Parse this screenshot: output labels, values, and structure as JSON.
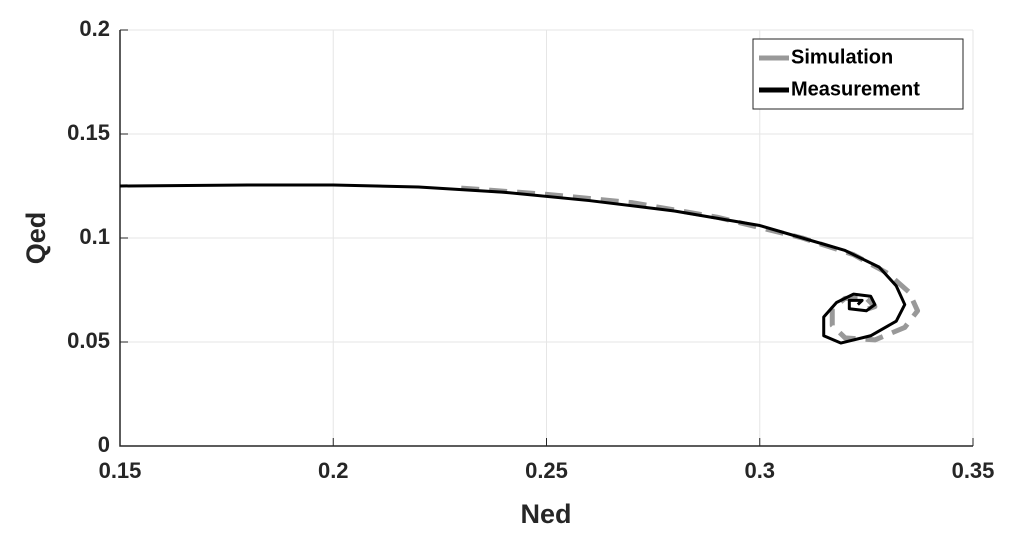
{
  "chart_data": {
    "type": "line",
    "xlabel": "Ned",
    "ylabel": "Qed",
    "xlim": [
      0.15,
      0.35
    ],
    "xticks": [
      0.15,
      0.2,
      0.25,
      0.3,
      0.35
    ],
    "ylim": [
      0,
      0.2
    ],
    "yticks": [
      0,
      0.05,
      0.1,
      0.15,
      0.2
    ],
    "grid": true,
    "legend": "upper right",
    "series": [
      {
        "name": "Simulation",
        "color": "#999999",
        "dashed": true,
        "x": [
          0.23,
          0.25,
          0.27,
          0.29,
          0.31,
          0.322,
          0.33,
          0.335,
          0.337,
          0.334,
          0.327,
          0.32,
          0.317,
          0.317,
          0.32,
          0.325,
          0.327,
          0.324
        ],
        "values": [
          0.124,
          0.121,
          0.117,
          0.11,
          0.1,
          0.092,
          0.083,
          0.074,
          0.065,
          0.057,
          0.051,
          0.052,
          0.058,
          0.066,
          0.071,
          0.071,
          0.067,
          0.065
        ]
      },
      {
        "name": "Measurement",
        "color": "#000000",
        "dashed": false,
        "x": [
          0.15,
          0.18,
          0.2,
          0.22,
          0.24,
          0.26,
          0.28,
          0.3,
          0.31,
          0.32,
          0.328,
          0.332,
          0.334,
          0.332,
          0.326,
          0.319,
          0.315,
          0.315,
          0.318,
          0.322,
          0.326,
          0.327,
          0.325,
          0.321,
          0.321,
          0.324,
          0.323
        ],
        "values": [
          0.125,
          0.1255,
          0.1255,
          0.1245,
          0.122,
          0.118,
          0.113,
          0.106,
          0.1,
          0.094,
          0.086,
          0.077,
          0.068,
          0.06,
          0.053,
          0.0495,
          0.053,
          0.062,
          0.069,
          0.073,
          0.072,
          0.068,
          0.065,
          0.066,
          0.07,
          0.07,
          0.068
        ]
      }
    ]
  }
}
